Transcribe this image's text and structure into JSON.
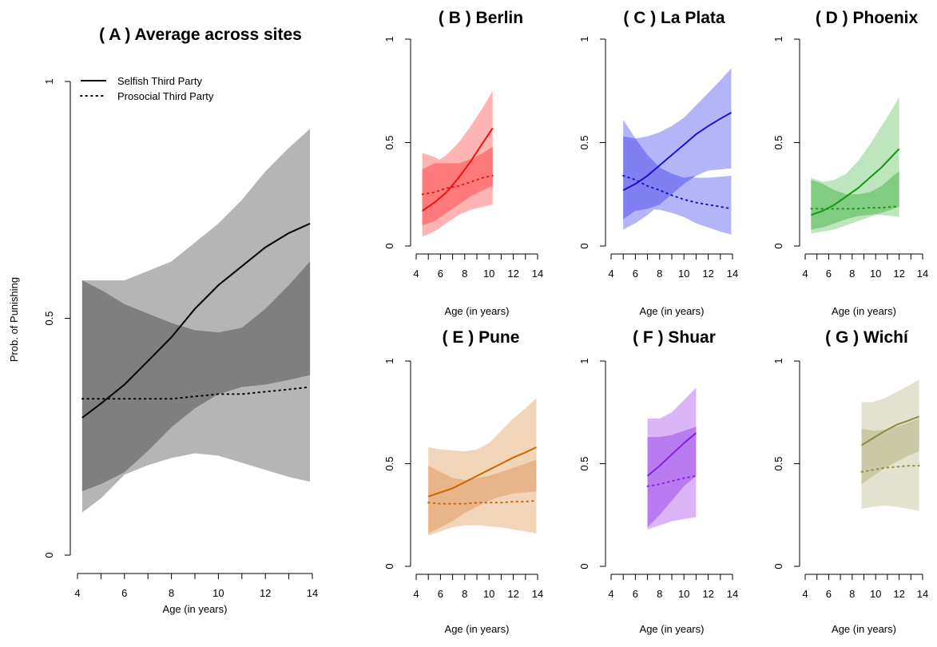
{
  "y_axis_label": "Prob. of Punishing",
  "legend": {
    "selfish": "Selfish Third Party",
    "prosocial": "Prosocial Third Party"
  },
  "chart_data": [
    {
      "id": "A",
      "type": "line",
      "title": "( A ) Average across sites",
      "xlabel": "Age (in years)",
      "ylabel": "Prob. of Punishing",
      "xlim": [
        4,
        15
      ],
      "ylim": [
        0,
        1
      ],
      "x_ticks": [
        4,
        6,
        8,
        10,
        12,
        14
      ],
      "x_tick_marks": [
        4,
        5,
        6,
        7,
        8,
        9,
        10,
        11,
        12,
        13,
        14
      ],
      "y_ticks": [
        0,
        0.5,
        1
      ],
      "y_tick_labels": [
        "0",
        "0.5",
        "1"
      ],
      "color": "#000000",
      "band_color": "#b5b5b5",
      "overlap_color": "#7f7f7f",
      "series": [
        {
          "name": "Selfish Third Party",
          "style": "solid",
          "x": [
            4.2,
            5,
            6,
            7,
            8,
            9,
            10,
            11,
            12,
            13,
            13.9
          ],
          "y": [
            0.29,
            0.32,
            0.36,
            0.41,
            0.46,
            0.52,
            0.57,
            0.61,
            0.65,
            0.68,
            0.7
          ],
          "lower": [
            0.09,
            0.12,
            0.17,
            0.19,
            0.205,
            0.215,
            0.21,
            0.195,
            0.18,
            0.165,
            0.155
          ],
          "upper": [
            0.58,
            0.58,
            0.58,
            0.6,
            0.62,
            0.66,
            0.7,
            0.75,
            0.81,
            0.86,
            0.9
          ]
        },
        {
          "name": "Prosocial Third Party",
          "style": "dotted",
          "x": [
            4.2,
            5,
            6,
            7,
            8,
            9,
            10,
            11,
            12,
            13,
            13.9
          ],
          "y": [
            0.33,
            0.33,
            0.33,
            0.33,
            0.33,
            0.335,
            0.34,
            0.34,
            0.345,
            0.35,
            0.355
          ],
          "lower": [
            0.135,
            0.15,
            0.175,
            0.22,
            0.27,
            0.31,
            0.34,
            0.355,
            0.36,
            0.37,
            0.38
          ],
          "upper": [
            0.58,
            0.56,
            0.53,
            0.51,
            0.49,
            0.475,
            0.47,
            0.48,
            0.52,
            0.57,
            0.62
          ]
        }
      ]
    },
    {
      "id": "B",
      "type": "line",
      "title": "( B ) Berlin",
      "xlabel": "Age (in years)",
      "xlim": [
        4,
        15
      ],
      "ylim": [
        0,
        1
      ],
      "x_ticks": [
        4,
        6,
        8,
        10,
        12,
        14
      ],
      "x_tick_marks": [
        4,
        5,
        6,
        7,
        8,
        9,
        10,
        11,
        12,
        13,
        14
      ],
      "y_ticks": [
        0,
        0.5,
        1
      ],
      "y_tick_labels": [
        "0",
        "0.5",
        "1"
      ],
      "color": "#ee1111",
      "band_color": "#ffb4b4",
      "overlap_color": "#ff7b7b",
      "series": [
        {
          "name": "Selfish Third Party",
          "style": "solid",
          "x": [
            4.5,
            5.5,
            6.5,
            7.5,
            8.5,
            9.5,
            10.3
          ],
          "y": [
            0.17,
            0.21,
            0.26,
            0.33,
            0.41,
            0.5,
            0.57
          ],
          "lower": [
            0.045,
            0.07,
            0.11,
            0.15,
            0.175,
            0.19,
            0.2
          ],
          "upper": [
            0.37,
            0.4,
            0.44,
            0.5,
            0.58,
            0.67,
            0.75
          ]
        },
        {
          "name": "Prosocial Third Party",
          "style": "dotted",
          "x": [
            4.5,
            5.5,
            6.5,
            7.5,
            8.5,
            9.5,
            10.3
          ],
          "y": [
            0.25,
            0.26,
            0.28,
            0.29,
            0.31,
            0.33,
            0.34
          ],
          "lower": [
            0.1,
            0.12,
            0.16,
            0.2,
            0.24,
            0.27,
            0.29
          ],
          "upper": [
            0.45,
            0.43,
            0.4,
            0.4,
            0.42,
            0.45,
            0.48
          ]
        }
      ]
    },
    {
      "id": "C",
      "type": "line",
      "title": "( C ) La Plata",
      "xlabel": "Age (in years)",
      "xlim": [
        4,
        15
      ],
      "ylim": [
        0,
        1
      ],
      "x_ticks": [
        4,
        6,
        8,
        10,
        12,
        14
      ],
      "x_tick_marks": [
        4,
        5,
        6,
        7,
        8,
        9,
        10,
        11,
        12,
        13,
        14
      ],
      "y_ticks": [
        0,
        0.5,
        1
      ],
      "y_tick_labels": [
        "0",
        "0.5",
        "1"
      ],
      "color": "#1515cc",
      "band_color": "#b4b4f8",
      "overlap_color": "#8080f2",
      "series": [
        {
          "name": "Selfish Third Party",
          "style": "solid",
          "x": [
            5,
            6,
            7,
            8,
            9,
            10,
            11,
            12,
            13,
            13.9
          ],
          "y": [
            0.27,
            0.3,
            0.34,
            0.39,
            0.44,
            0.49,
            0.54,
            0.58,
            0.615,
            0.645
          ],
          "lower": [
            0.08,
            0.11,
            0.15,
            0.2,
            0.25,
            0.3,
            0.34,
            0.365,
            0.37,
            0.375
          ],
          "upper": [
            0.53,
            0.52,
            0.53,
            0.55,
            0.58,
            0.62,
            0.68,
            0.74,
            0.8,
            0.86
          ]
        },
        {
          "name": "Prosocial Third Party",
          "style": "dotted",
          "x": [
            5,
            6,
            7,
            8,
            9,
            10,
            11,
            12,
            13,
            13.9
          ],
          "y": [
            0.34,
            0.32,
            0.29,
            0.27,
            0.245,
            0.225,
            0.21,
            0.2,
            0.19,
            0.18
          ],
          "lower": [
            0.13,
            0.17,
            0.18,
            0.175,
            0.16,
            0.14,
            0.11,
            0.09,
            0.07,
            0.055
          ],
          "upper": [
            0.61,
            0.52,
            0.44,
            0.38,
            0.35,
            0.33,
            0.33,
            0.33,
            0.335,
            0.34
          ]
        }
      ]
    },
    {
      "id": "D",
      "type": "line",
      "title": "( D ) Phoenix",
      "xlabel": "Age (in years)",
      "xlim": [
        4,
        15
      ],
      "ylim": [
        0,
        1
      ],
      "x_ticks": [
        4,
        6,
        8,
        10,
        12,
        14
      ],
      "x_tick_marks": [
        4,
        5,
        6,
        7,
        8,
        9,
        10,
        11,
        12,
        13,
        14
      ],
      "y_ticks": [
        0,
        0.5,
        1
      ],
      "y_tick_labels": [
        "0",
        "0.5",
        "1"
      ],
      "color": "#119911",
      "band_color": "#bde6bd",
      "overlap_color": "#80cc80",
      "series": [
        {
          "name": "Selfish Third Party",
          "style": "solid",
          "x": [
            4.5,
            5.5,
            6.5,
            7.5,
            8.5,
            9.5,
            10.5,
            11.5,
            12
          ],
          "y": [
            0.15,
            0.17,
            0.2,
            0.24,
            0.28,
            0.33,
            0.38,
            0.44,
            0.47
          ],
          "lower": [
            0.06,
            0.07,
            0.08,
            0.1,
            0.12,
            0.14,
            0.16,
            0.18,
            0.19
          ],
          "upper": [
            0.33,
            0.31,
            0.32,
            0.35,
            0.41,
            0.49,
            0.58,
            0.67,
            0.72
          ]
        },
        {
          "name": "Prosocial Third Party",
          "style": "dotted",
          "x": [
            4.5,
            5.5,
            6.5,
            7.5,
            8.5,
            9.5,
            10.5,
            11.5,
            12
          ],
          "y": [
            0.18,
            0.18,
            0.18,
            0.18,
            0.18,
            0.185,
            0.185,
            0.19,
            0.19
          ],
          "lower": [
            0.08,
            0.09,
            0.11,
            0.13,
            0.145,
            0.15,
            0.15,
            0.145,
            0.14
          ],
          "upper": [
            0.32,
            0.3,
            0.27,
            0.25,
            0.25,
            0.26,
            0.29,
            0.34,
            0.36
          ]
        }
      ]
    },
    {
      "id": "E",
      "type": "line",
      "title": "( E ) Pune",
      "xlabel": "Age (in years)",
      "xlim": [
        4,
        15
      ],
      "ylim": [
        0,
        1
      ],
      "x_ticks": [
        4,
        6,
        8,
        10,
        12,
        14
      ],
      "x_tick_marks": [
        4,
        5,
        6,
        7,
        8,
        9,
        10,
        11,
        12,
        13,
        14
      ],
      "y_ticks": [
        0,
        0.5,
        1
      ],
      "y_tick_labels": [
        "0",
        "0.5",
        "1"
      ],
      "color": "#cc6600",
      "band_color": "#f2d4b8",
      "overlap_color": "#e8b48a",
      "series": [
        {
          "name": "Selfish Third Party",
          "style": "solid",
          "x": [
            5,
            6,
            7,
            8,
            9,
            10,
            11,
            12,
            13,
            13.9
          ],
          "y": [
            0.34,
            0.36,
            0.38,
            0.41,
            0.44,
            0.47,
            0.5,
            0.53,
            0.555,
            0.58
          ],
          "lower": [
            0.16,
            0.19,
            0.22,
            0.26,
            0.29,
            0.32,
            0.34,
            0.355,
            0.36,
            0.365
          ],
          "upper": [
            0.58,
            0.57,
            0.565,
            0.56,
            0.57,
            0.6,
            0.66,
            0.72,
            0.77,
            0.82
          ]
        },
        {
          "name": "Prosocial Third Party",
          "style": "dotted",
          "x": [
            5,
            6,
            7,
            8,
            9,
            10,
            11,
            12,
            13,
            13.9
          ],
          "y": [
            0.31,
            0.305,
            0.305,
            0.305,
            0.31,
            0.31,
            0.31,
            0.315,
            0.315,
            0.32
          ],
          "lower": [
            0.15,
            0.17,
            0.19,
            0.2,
            0.2,
            0.195,
            0.19,
            0.18,
            0.17,
            0.16
          ],
          "upper": [
            0.49,
            0.46,
            0.43,
            0.42,
            0.43,
            0.44,
            0.46,
            0.48,
            0.5,
            0.52
          ]
        }
      ]
    },
    {
      "id": "F",
      "type": "line",
      "title": "( F ) Shuar",
      "xlabel": "Age (in years)",
      "xlim": [
        4,
        15
      ],
      "ylim": [
        0,
        1
      ],
      "x_ticks": [
        4,
        6,
        8,
        10,
        12,
        14
      ],
      "x_tick_marks": [
        4,
        5,
        6,
        7,
        8,
        9,
        10,
        11,
        12,
        13,
        14
      ],
      "y_ticks": [
        0,
        0.5,
        1
      ],
      "y_tick_labels": [
        "0",
        "0.5",
        "1"
      ],
      "color": "#8a1ee0",
      "band_color": "#dcb4f8",
      "overlap_color": "#b97bf0",
      "series": [
        {
          "name": "Selfish Third Party",
          "style": "solid",
          "x": [
            7,
            8,
            9,
            10,
            11
          ],
          "y": [
            0.44,
            0.49,
            0.545,
            0.6,
            0.65
          ],
          "lower": [
            0.19,
            0.25,
            0.32,
            0.39,
            0.44
          ],
          "upper": [
            0.72,
            0.72,
            0.75,
            0.81,
            0.87
          ]
        },
        {
          "name": "Prosocial Third Party",
          "style": "dotted",
          "x": [
            7,
            8,
            9,
            10,
            11
          ],
          "y": [
            0.39,
            0.4,
            0.415,
            0.43,
            0.44
          ],
          "lower": [
            0.18,
            0.2,
            0.22,
            0.23,
            0.24
          ],
          "upper": [
            0.63,
            0.63,
            0.64,
            0.66,
            0.68
          ]
        }
      ]
    },
    {
      "id": "G",
      "type": "line",
      "title": "( G ) Wichí",
      "xlabel": "Age (in years)",
      "xlim": [
        4,
        15
      ],
      "ylim": [
        0,
        1
      ],
      "x_ticks": [
        4,
        6,
        8,
        10,
        12,
        14
      ],
      "x_tick_marks": [
        4,
        5,
        6,
        7,
        8,
        9,
        10,
        11,
        12,
        13,
        14
      ],
      "y_ticks": [
        0,
        0.5,
        1
      ],
      "y_tick_labels": [
        "0",
        "0.5",
        "1"
      ],
      "color": "#8c8c3c",
      "band_color": "#e2e2cf",
      "overlap_color": "#c9c9a6",
      "series": [
        {
          "name": "Selfish Third Party",
          "style": "solid",
          "x": [
            8.8,
            9.8,
            10.8,
            11.8,
            12.8,
            13.7
          ],
          "y": [
            0.59,
            0.625,
            0.66,
            0.69,
            0.71,
            0.73
          ],
          "lower": [
            0.4,
            0.44,
            0.48,
            0.51,
            0.54,
            0.56
          ],
          "upper": [
            0.8,
            0.8,
            0.82,
            0.85,
            0.88,
            0.91
          ]
        },
        {
          "name": "Prosocial Third Party",
          "style": "dotted",
          "x": [
            8.8,
            9.8,
            10.8,
            11.8,
            12.8,
            13.7
          ],
          "y": [
            0.46,
            0.47,
            0.48,
            0.485,
            0.49,
            0.49
          ],
          "lower": [
            0.28,
            0.29,
            0.295,
            0.29,
            0.28,
            0.27
          ],
          "upper": [
            0.67,
            0.66,
            0.665,
            0.68,
            0.7,
            0.72
          ]
        }
      ]
    }
  ]
}
